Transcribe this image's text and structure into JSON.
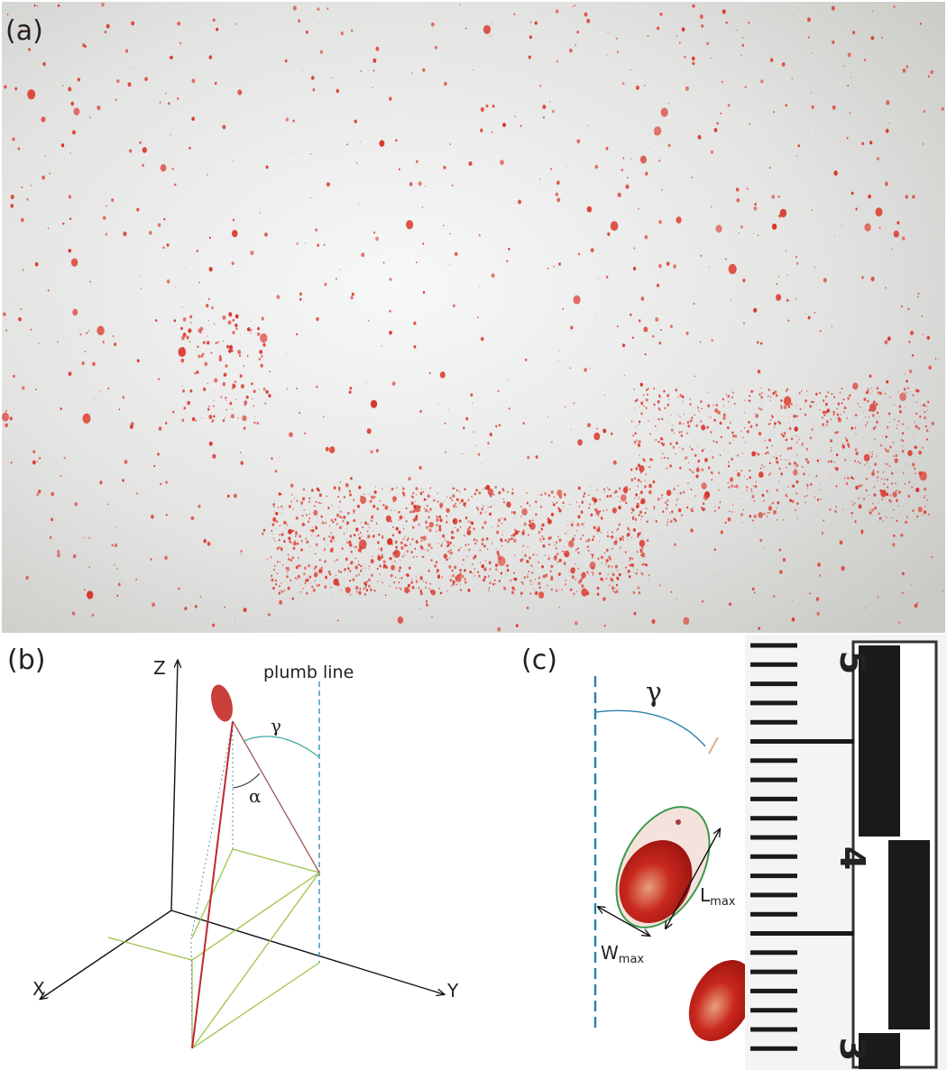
{
  "panels": {
    "a": {
      "label": "(a)"
    },
    "b": {
      "label": "(b)",
      "axes": {
        "z": "Z",
        "x": "X",
        "y": "Y"
      },
      "plumb_line": "plumb line",
      "gamma": "γ",
      "alpha": "α"
    },
    "c": {
      "label": "(c)",
      "gamma": "γ",
      "length": {
        "main": "L",
        "sub": "max"
      },
      "width": {
        "main": "W",
        "sub": "max"
      },
      "ruler_numbers": [
        "5",
        "4",
        "3"
      ]
    }
  }
}
